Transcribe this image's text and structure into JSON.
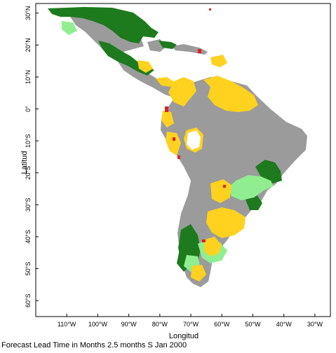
{
  "map": {
    "xlabel": "Longitud",
    "ylabel": "Latitud",
    "x_range": [
      -120,
      -25
    ],
    "y_range": [
      -65,
      33
    ],
    "x_ticks": [
      {
        "value": -110,
        "label": "110°W"
      },
      {
        "value": -100,
        "label": "100°W"
      },
      {
        "value": -90,
        "label": "90°W"
      },
      {
        "value": -80,
        "label": "80°W"
      },
      {
        "value": -70,
        "label": "70°W"
      },
      {
        "value": -60,
        "label": "60°W"
      },
      {
        "value": -50,
        "label": "50°W"
      },
      {
        "value": -40,
        "label": "40°W"
      },
      {
        "value": -30,
        "label": "30°W"
      }
    ],
    "y_ticks": [
      {
        "value": 30,
        "label": "30°N"
      },
      {
        "value": 20,
        "label": "20°N"
      },
      {
        "value": 10,
        "label": "10°N"
      },
      {
        "value": 0,
        "label": "0°"
      },
      {
        "value": -10,
        "label": "10°S"
      },
      {
        "value": -20,
        "label": "20°S"
      },
      {
        "value": -30,
        "label": "30°S"
      },
      {
        "value": -40,
        "label": "40°S"
      },
      {
        "value": -50,
        "label": "50°S"
      },
      {
        "value": -60,
        "label": "60°S"
      }
    ],
    "colors": {
      "land_gray": "#9b9b9b",
      "dark_green": "#1d7a1d",
      "light_green": "#90ee90",
      "yellow": "#ffd21f",
      "orange": "#ffa500",
      "red": "#e02020"
    }
  },
  "footer": {
    "caption": "Forecast Lead Time in Months 2.5 months S Jan 2000"
  }
}
